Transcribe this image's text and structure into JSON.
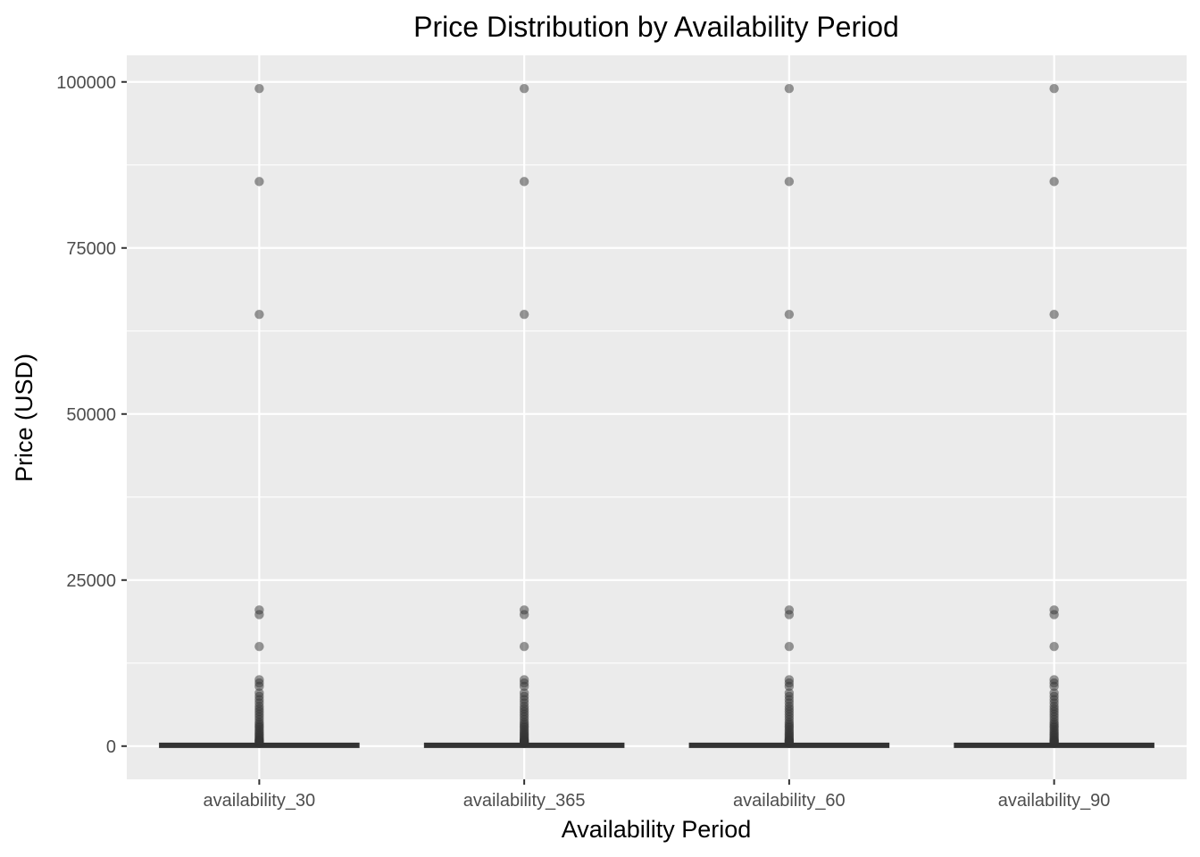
{
  "chart_data": {
    "type": "box",
    "title": "Price Distribution by Availability Period",
    "xlabel": "Availability Period",
    "ylabel": "Price (USD)",
    "ylim": [
      -5000,
      104000
    ],
    "yticks": [
      0,
      25000,
      50000,
      75000,
      100000
    ],
    "ytick_labels": [
      "0",
      "25000",
      "50000",
      "75000",
      "100000"
    ],
    "grid": true,
    "legend": "none",
    "colors": {
      "panel": "#EBEBEB",
      "grid": "#FFFFFF",
      "box": "#333333",
      "outlier": "#333333"
    },
    "categories": [
      "availability_30",
      "availability_365",
      "availability_60",
      "availability_90"
    ],
    "boxes": [
      {
        "category": "availability_30",
        "min": 0,
        "q1": 60,
        "median": 110,
        "q3": 190,
        "max": 380,
        "outliers": [
          400,
          500,
          600,
          700,
          800,
          900,
          1000,
          1200,
          1400,
          1600,
          1800,
          2000,
          2250,
          2500,
          2800,
          3000,
          3300,
          3600,
          4000,
          4400,
          4800,
          5200,
          5600,
          6000,
          6500,
          7000,
          7500,
          8000,
          9000,
          9500,
          10000,
          15000,
          19800,
          20500,
          65000,
          85000,
          99000
        ]
      },
      {
        "category": "availability_365",
        "min": 0,
        "q1": 60,
        "median": 110,
        "q3": 190,
        "max": 380,
        "outliers": [
          400,
          500,
          600,
          700,
          800,
          900,
          1000,
          1200,
          1400,
          1600,
          1800,
          2000,
          2250,
          2500,
          2800,
          3000,
          3300,
          3600,
          4000,
          4400,
          4800,
          5200,
          5600,
          6000,
          6500,
          7000,
          7500,
          8000,
          9000,
          9500,
          10000,
          15000,
          19800,
          20500,
          65000,
          85000,
          99000
        ]
      },
      {
        "category": "availability_60",
        "min": 0,
        "q1": 60,
        "median": 110,
        "q3": 190,
        "max": 380,
        "outliers": [
          400,
          500,
          600,
          700,
          800,
          900,
          1000,
          1200,
          1400,
          1600,
          1800,
          2000,
          2250,
          2500,
          2800,
          3000,
          3300,
          3600,
          4000,
          4400,
          4800,
          5200,
          5600,
          6000,
          6500,
          7000,
          7500,
          8000,
          9000,
          9500,
          10000,
          15000,
          19800,
          20500,
          65000,
          85000,
          99000
        ]
      },
      {
        "category": "availability_90",
        "min": 0,
        "q1": 60,
        "median": 110,
        "q3": 190,
        "max": 380,
        "outliers": [
          400,
          500,
          600,
          700,
          800,
          900,
          1000,
          1200,
          1400,
          1600,
          1800,
          2000,
          2250,
          2500,
          2800,
          3000,
          3300,
          3600,
          4000,
          4400,
          4800,
          5200,
          5600,
          6000,
          6500,
          7000,
          7500,
          8000,
          9000,
          9500,
          10000,
          15000,
          19800,
          20500,
          65000,
          85000,
          99000
        ]
      }
    ]
  }
}
